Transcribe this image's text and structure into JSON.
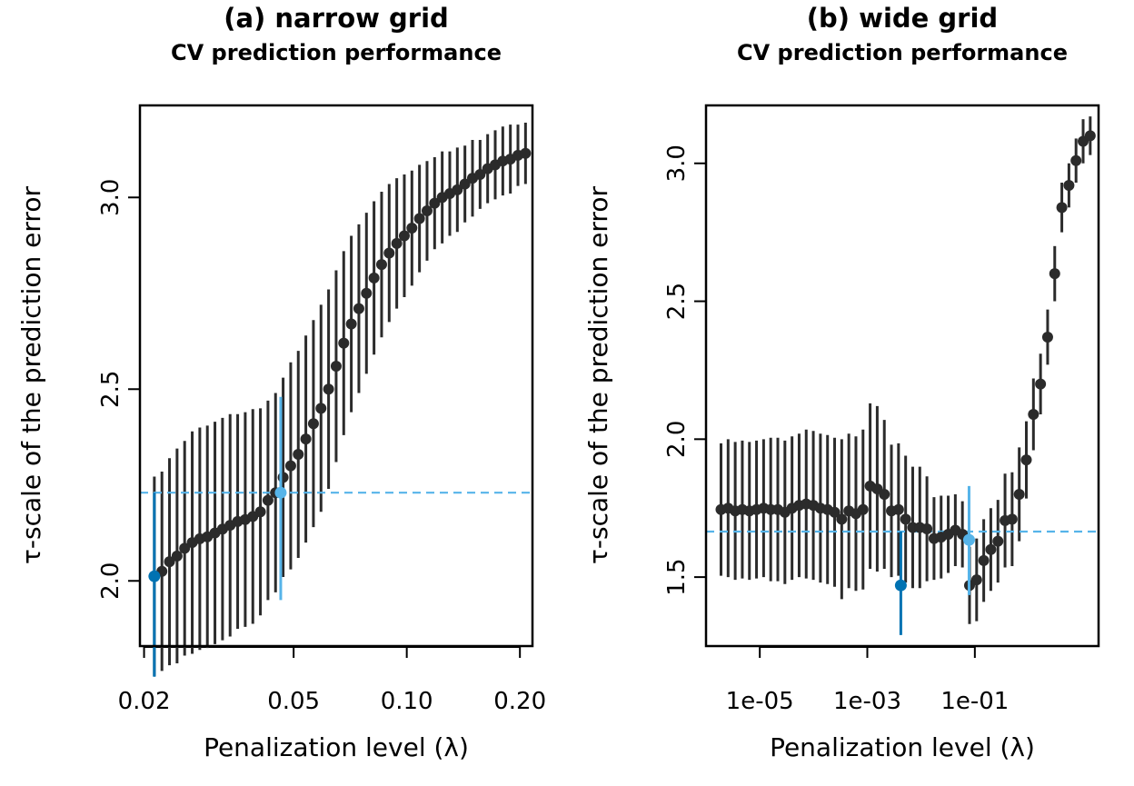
{
  "colors": {
    "point": "#2b2b2b",
    "selected_min": "#0072b2",
    "selected_1se": "#56b4e9",
    "threshold_line": "#56b4e9"
  },
  "chart_data": [
    {
      "type": "scatter",
      "title": "(a) narrow grid",
      "subtitle": "CV prediction performance",
      "xlabel": "Penalization level (λ)",
      "ylabel": "τ-scale of the prediction error",
      "x_scale": "log",
      "xlim": [
        0.0195,
        0.216
      ],
      "ylim": [
        1.83,
        3.24
      ],
      "x_ticks": [
        0.02,
        0.05,
        0.1,
        0.2
      ],
      "x_tick_labels": [
        "0.02",
        "0.05",
        "0.10",
        "0.20"
      ],
      "y_ticks": [
        2.0,
        2.5,
        3.0
      ],
      "y_tick_labels": [
        "2.0",
        "2.5",
        "3.0"
      ],
      "x_start": 0.0213,
      "x_end": 0.207,
      "y_values": [
        2.012,
        2.025,
        2.05,
        2.065,
        2.085,
        2.1,
        2.11,
        2.115,
        2.125,
        2.135,
        2.145,
        2.155,
        2.16,
        2.168,
        2.18,
        2.21,
        2.23,
        2.27,
        2.3,
        2.33,
        2.37,
        2.41,
        2.45,
        2.5,
        2.56,
        2.62,
        2.67,
        2.71,
        2.75,
        2.79,
        2.825,
        2.855,
        2.88,
        2.9,
        2.92,
        2.945,
        2.965,
        2.985,
        3.0,
        3.01,
        3.02,
        3.035,
        3.05,
        3.06,
        3.075,
        3.085,
        3.095,
        3.1,
        3.11,
        3.115
      ],
      "half_widths": [
        0.26,
        0.26,
        0.27,
        0.28,
        0.28,
        0.29,
        0.29,
        0.29,
        0.29,
        0.29,
        0.29,
        0.28,
        0.28,
        0.28,
        0.27,
        0.26,
        0.26,
        0.26,
        0.27,
        0.27,
        0.27,
        0.27,
        0.27,
        0.26,
        0.25,
        0.24,
        0.23,
        0.22,
        0.21,
        0.2,
        0.19,
        0.18,
        0.17,
        0.16,
        0.15,
        0.14,
        0.13,
        0.12,
        0.12,
        0.11,
        0.11,
        0.1,
        0.1,
        0.09,
        0.09,
        0.09,
        0.09,
        0.09,
        0.08,
        0.08
      ],
      "selected_min": {
        "x": 0.0213,
        "y": 2.012,
        "low": 1.75,
        "high": 2.23
      },
      "selected_1se": {
        "x": 0.0462,
        "y": 2.23,
        "low": 1.95,
        "high": 2.48
      },
      "threshold_y": 2.23
    },
    {
      "type": "scatter",
      "title": "(b) wide grid",
      "subtitle": "CV prediction performance",
      "xlabel": "Penalization level (λ)",
      "ylabel": "τ-scale of the prediction error",
      "x_scale": "log",
      "xlim": [
        1e-06,
        20
      ],
      "ylim": [
        1.25,
        3.21
      ],
      "x_ticks": [
        1e-05,
        0.001,
        0.1
      ],
      "x_tick_labels": [
        "1e-05",
        "1e-03",
        "1e-01"
      ],
      "y_ticks": [
        1.5,
        2.0,
        2.5,
        3.0
      ],
      "y_tick_labels": [
        "1.5",
        "2.0",
        "2.5",
        "3.0"
      ],
      "x_start": 1.9e-06,
      "x_end": 14,
      "y_values": [
        1.745,
        1.75,
        1.74,
        1.745,
        1.74,
        1.745,
        1.75,
        1.745,
        1.745,
        1.735,
        1.75,
        1.76,
        1.765,
        1.76,
        1.75,
        1.745,
        1.735,
        1.71,
        1.74,
        1.73,
        1.745,
        1.83,
        1.82,
        1.8,
        1.74,
        1.745,
        1.71,
        1.68,
        1.68,
        1.675,
        1.64,
        1.645,
        1.655,
        1.67,
        1.655,
        1.47,
        1.49,
        1.56,
        1.6,
        1.63,
        1.705,
        1.71,
        1.8,
        1.925,
        2.09,
        2.2,
        2.37,
        2.6,
        2.84,
        2.92,
        3.01,
        3.08,
        3.1
      ],
      "half_widths": [
        0.24,
        0.25,
        0.25,
        0.25,
        0.25,
        0.25,
        0.25,
        0.26,
        0.26,
        0.26,
        0.26,
        0.26,
        0.27,
        0.27,
        0.27,
        0.27,
        0.27,
        0.29,
        0.28,
        0.28,
        0.29,
        0.3,
        0.3,
        0.27,
        0.24,
        0.24,
        0.23,
        0.22,
        0.22,
        0.19,
        0.15,
        0.15,
        0.14,
        0.13,
        0.12,
        0.14,
        0.15,
        0.15,
        0.15,
        0.15,
        0.17,
        0.17,
        0.17,
        0.14,
        0.13,
        0.11,
        0.1,
        0.1,
        0.09,
        0.08,
        0.08,
        0.08,
        0.07
      ],
      "selected_min": {
        "x": 0.0042,
        "y": 1.47,
        "low": 1.29,
        "high": 1.665
      },
      "selected_1se": {
        "x": 0.078,
        "y": 1.635,
        "low": 1.435,
        "high": 1.83
      },
      "threshold_y": 1.665
    }
  ]
}
